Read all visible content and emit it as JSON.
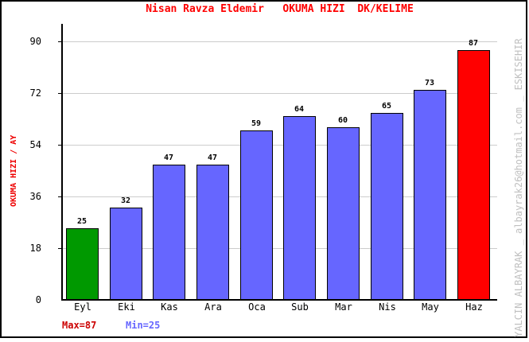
{
  "chart": {
    "title": "Nisan Ravza Eldemir   OKUMA HIZI  DK/KELIME",
    "y_axis_title": "OKUMA HIZI / AY"
  },
  "chart_data": {
    "type": "bar",
    "title": "Nisan Ravza Eldemir   OKUMA HIZI  DK/KELIME",
    "xlabel": "",
    "ylabel": "OKUMA HIZI / AY",
    "categories": [
      "Eyl",
      "Eki",
      "Kas",
      "Ara",
      "Oca",
      "Sub",
      "Mar",
      "Nis",
      "May",
      "Haz"
    ],
    "values": [
      25,
      32,
      47,
      47,
      59,
      64,
      60,
      65,
      73,
      87
    ],
    "bar_colors": [
      "#009900",
      "#6666ff",
      "#6666ff",
      "#6666ff",
      "#6666ff",
      "#6666ff",
      "#6666ff",
      "#6666ff",
      "#6666ff",
      "#ff0000"
    ],
    "yticks": [
      0,
      18,
      36,
      54,
      72,
      90
    ],
    "ylim": [
      0,
      90
    ],
    "grid": true,
    "legend_position": "none"
  },
  "annotations": {
    "max_label": "Max=87",
    "min_label": "Min=25"
  },
  "watermark": {
    "text": "YALCIN ALBAYRAK _ albayrak26@hotmail.com _ ESKISEHIR"
  },
  "colors": {
    "title": "#ff0000",
    "y_axis_title": "#ee0000",
    "bar_blue": "#6666ff",
    "bar_green": "#009900",
    "bar_red": "#ff0000",
    "max_label": "#cc0000",
    "min_label": "#6666ff",
    "gridline": "#cccccc",
    "axis": "#000000",
    "watermark": "#c0c0c0"
  }
}
